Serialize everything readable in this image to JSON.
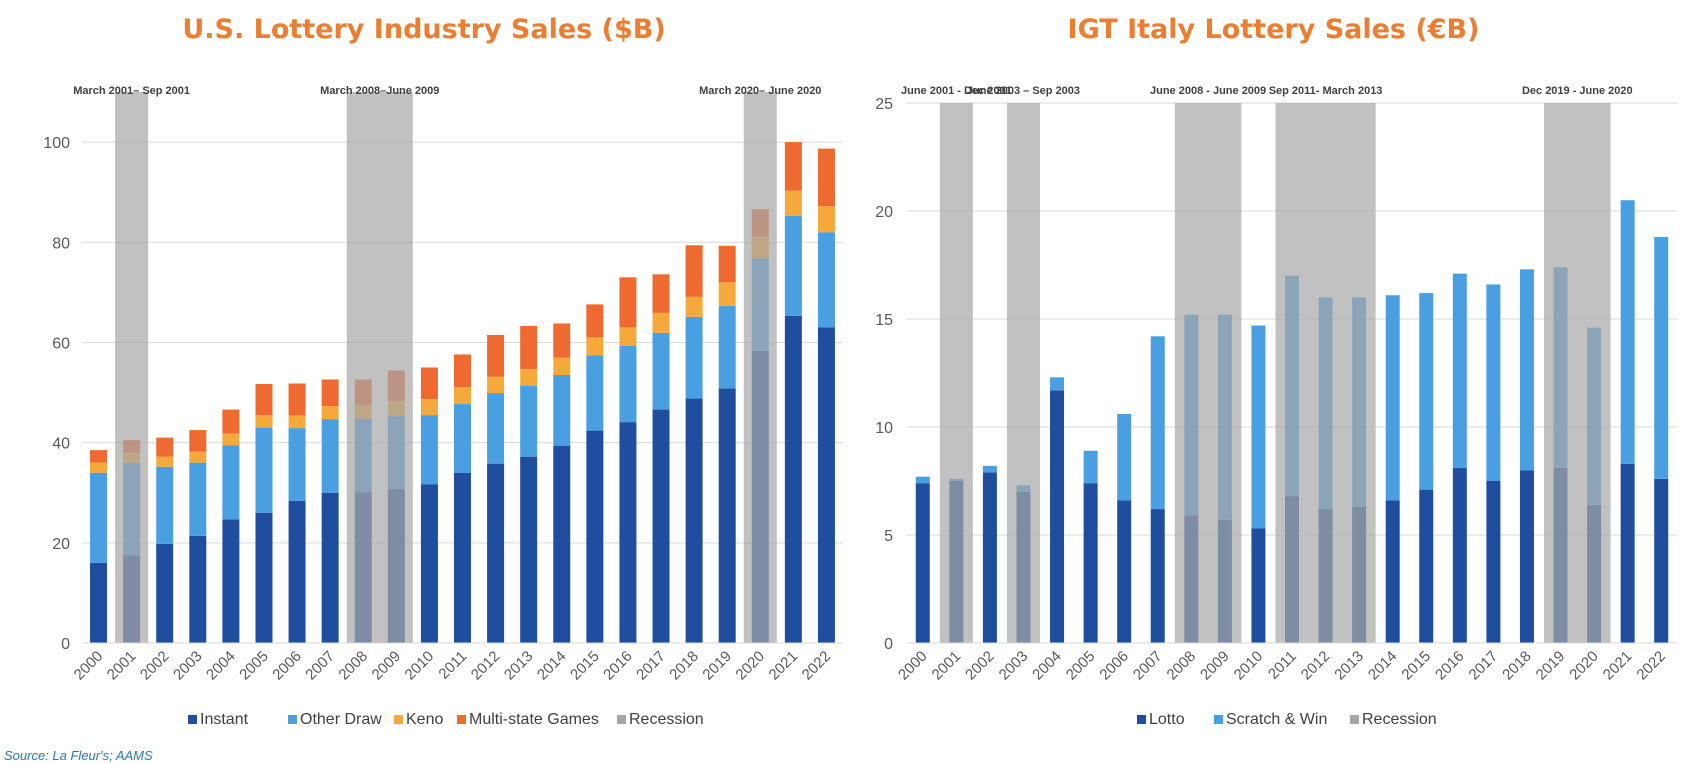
{
  "chart_data": [
    {
      "type": "bar",
      "stacked": true,
      "title": "U.S. Lottery Industry Sales ($B)",
      "categories": [
        "2000",
        "2001",
        "2002",
        "2003",
        "2004",
        "2005",
        "2006",
        "2007",
        "2008",
        "2009",
        "2010",
        "2011",
        "2012",
        "2013",
        "2014",
        "2015",
        "2016",
        "2017",
        "2018",
        "2019",
        "2020",
        "2021",
        "2022"
      ],
      "series": [
        {
          "name": "Instant",
          "color": "#1F4E9F",
          "values": [
            16,
            17.5,
            19.8,
            21.4,
            24.7,
            26,
            28.4,
            30,
            30.1,
            30.8,
            31.7,
            34,
            35.8,
            37.2,
            39.4,
            42.4,
            44.1,
            46.6,
            48.8,
            50.8,
            58.3,
            65.3,
            63
          ]
        },
        {
          "name": "Other Draw",
          "color": "#4A9FE0",
          "values": [
            18,
            18.5,
            15.4,
            14.6,
            14.8,
            17,
            14.5,
            14.7,
            14.7,
            14.5,
            13.8,
            13.7,
            14.1,
            14.1,
            14.1,
            15,
            15.2,
            15.3,
            16.3,
            16.5,
            18.5,
            20,
            19
          ]
        },
        {
          "name": "Keno",
          "color": "#F6A93B",
          "values": [
            2,
            2,
            2,
            2.2,
            2.3,
            2.5,
            2.5,
            2.6,
            2.7,
            3,
            3.2,
            3.4,
            3.3,
            3.4,
            3.5,
            3.6,
            3.7,
            4,
            4,
            4.7,
            4.3,
            5,
            5.2
          ]
        },
        {
          "name": "Multi-state Games",
          "color": "#EF6A30",
          "values": [
            2.5,
            2.5,
            3.8,
            4.3,
            4.8,
            6.2,
            6.4,
            5.3,
            5.1,
            6.1,
            6.3,
            6.5,
            8.3,
            8.6,
            6.8,
            6.6,
            10,
            7.7,
            10.3,
            7.3,
            5.5,
            9.7,
            11.5
          ]
        }
      ],
      "legend": [
        "Instant",
        "Other Draw",
        "Keno",
        "Multi-state Games",
        "Recession"
      ],
      "recession_color": "#A6A6A6",
      "recessions": [
        {
          "label": "March 2001– Sep 2001",
          "categories": [
            "2001"
          ]
        },
        {
          "label": "March 2008–June 2009",
          "categories": [
            "2008",
            "2009"
          ]
        },
        {
          "label": "March 2020– June 2020",
          "categories": [
            "2020"
          ]
        }
      ],
      "yticks": [
        0,
        20,
        40,
        60,
        80,
        100
      ],
      "ylim": [
        0,
        110
      ],
      "grid": true,
      "legend_position": "bottom"
    },
    {
      "type": "bar",
      "stacked": true,
      "title": "IGT Italy Lottery Sales (€B)",
      "categories": [
        "2000",
        "2001",
        "2002",
        "2003",
        "2004",
        "2005",
        "2006",
        "2007",
        "2008",
        "2009",
        "2010",
        "2011",
        "2012",
        "2013",
        "2014",
        "2015",
        "2016",
        "2017",
        "2018",
        "2019",
        "2020",
        "2021",
        "2022"
      ],
      "series": [
        {
          "name": "Lotto",
          "color": "#1F4E9F",
          "values": [
            7.4,
            7.5,
            7.9,
            7,
            11.7,
            7.4,
            6.6,
            6.2,
            5.9,
            5.7,
            5.3,
            6.8,
            6.2,
            6.3,
            6.6,
            7.1,
            8.1,
            7.5,
            8,
            8.1,
            6.4,
            8.3,
            7.6
          ]
        },
        {
          "name": "Scratch & Win",
          "color": "#4A9FE0",
          "values": [
            0.3,
            0.1,
            0.3,
            0.3,
            0.6,
            1.5,
            4,
            8,
            9.3,
            9.5,
            9.4,
            10.2,
            9.8,
            9.7,
            9.5,
            9.1,
            9,
            9.1,
            9.3,
            9.3,
            8.2,
            12.2,
            11.2
          ]
        }
      ],
      "legend": [
        "Lotto",
        "Scratch & Win",
        "Recession"
      ],
      "recession_color": "#A6A6A6",
      "recessions": [
        {
          "label": "June 2001 - Dec 2001",
          "categories": [
            "2001"
          ]
        },
        {
          "label": "June 2003 – Sep 2003",
          "categories": [
            "2003"
          ]
        },
        {
          "label": "June 2008 - June 2009",
          "categories": [
            "2008",
            "2009"
          ]
        },
        {
          "label": "Sep 2011- March 2013",
          "categories": [
            "2011",
            "2012",
            "2013"
          ]
        },
        {
          "label": "Dec 2019 - June 2020",
          "categories": [
            "2019",
            "2020"
          ]
        }
      ],
      "yticks": [
        0,
        5,
        10,
        15,
        20,
        25
      ],
      "ylim": [
        0,
        25
      ],
      "grid": true,
      "legend_position": "bottom"
    }
  ],
  "footer": {
    "source": "Source: La Fleur's; AAMS"
  }
}
